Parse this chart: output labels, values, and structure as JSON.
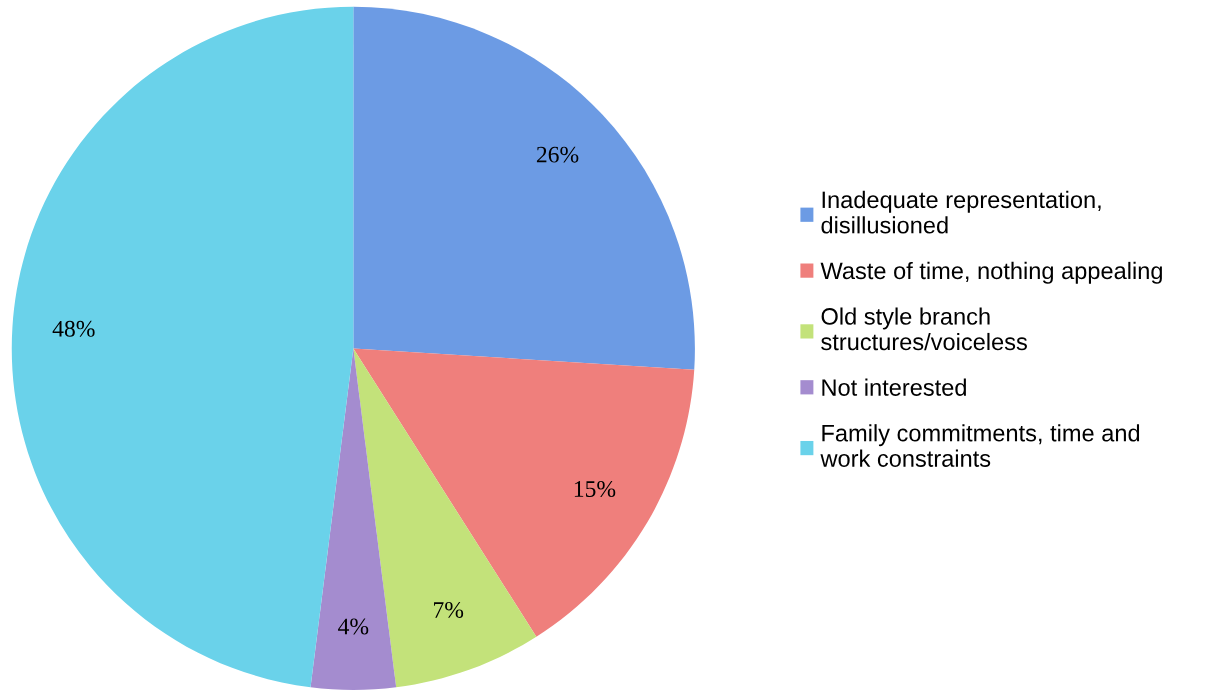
{
  "chart_data": {
    "type": "pie",
    "categories": [
      "Inadequate representation,\ndisillusioned",
      "Waste of time, nothing appealing",
      "Old style branch\nstructures/voiceless",
      "Not interested",
      "Family commitments, time and\nwork constraints"
    ],
    "values": [
      26,
      15,
      7,
      4,
      48
    ],
    "colors": [
      "#6c9be4",
      "#ef7f7c",
      "#c3e27a",
      "#a48ccf",
      "#6ad2ea"
    ],
    "value_labels": [
      "26%",
      "15%",
      "7%",
      "4%",
      "48%"
    ],
    "legend": "right"
  }
}
